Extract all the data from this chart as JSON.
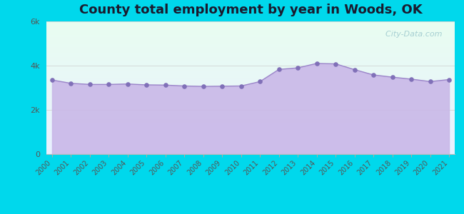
{
  "title": "County total employment by year in Woods, OK",
  "years": [
    2000,
    2001,
    2002,
    2003,
    2004,
    2005,
    2006,
    2007,
    2008,
    2009,
    2010,
    2011,
    2012,
    2013,
    2014,
    2015,
    2016,
    2017,
    2018,
    2019,
    2020,
    2021
  ],
  "values": [
    3350,
    3200,
    3150,
    3150,
    3170,
    3130,
    3120,
    3080,
    3060,
    3070,
    3080,
    3280,
    3830,
    3900,
    4100,
    4080,
    3820,
    3580,
    3480,
    3390,
    3280,
    3370
  ],
  "ylim": [
    0,
    6000
  ],
  "yticks": [
    0,
    2000,
    4000,
    6000
  ],
  "ytick_labels": [
    "0",
    "2k",
    "4k",
    "6k"
  ],
  "fill_color": "#c9b8e8",
  "line_color": "#9b85c9",
  "dot_color": "#8070b8",
  "bg_outer": "#00d8ec",
  "bg_plot_top_color": "#e8fdf0",
  "bg_plot_bottom_color": "#e8f0ff",
  "title_fontsize": 13,
  "title_color": "#1a1a2e",
  "watermark": "  City-Data.com",
  "watermark_icon": "●"
}
